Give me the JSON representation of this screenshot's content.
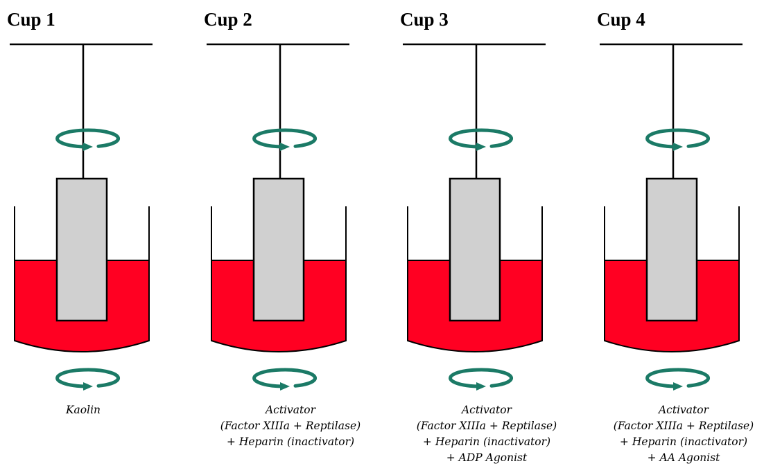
{
  "cups": [
    {
      "title": "Cup 1",
      "lines": [
        "Kaolin"
      ]
    },
    {
      "title": "Cup 2",
      "lines": [
        "Activator",
        "(Factor XIIIa +  Reptilase)",
        "+ Heparin (inactivator)"
      ]
    },
    {
      "title": "Cup 3",
      "lines": [
        "Activator",
        "(Factor XIIIa +  Reptilase)",
        "+ Heparin (inactivator)",
        "+ ADP Agonist"
      ]
    },
    {
      "title": "Cup 4",
      "lines": [
        "Activator",
        "(Factor XIIIa +  Reptilase)",
        "+ Heparin (inactivator)",
        "+ AA Agonist"
      ]
    }
  ]
}
